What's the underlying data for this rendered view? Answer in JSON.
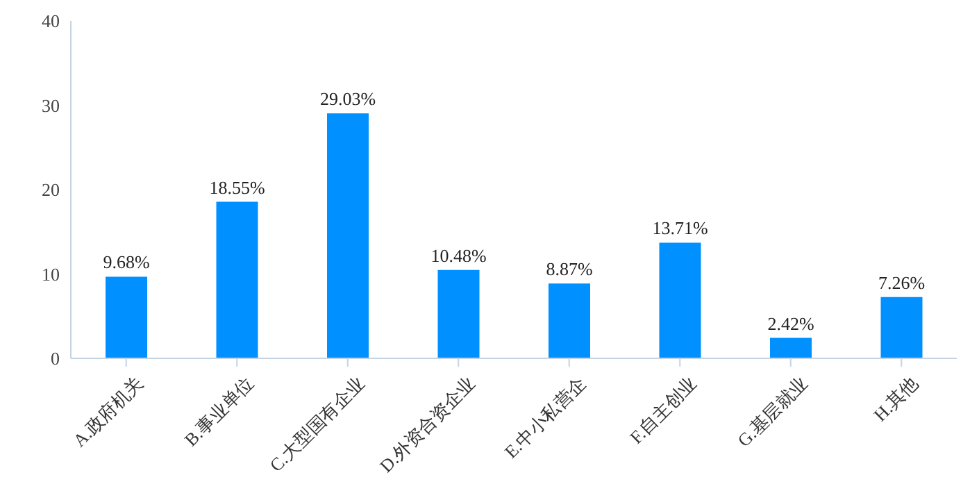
{
  "chart_data": {
    "type": "bar",
    "categories": [
      "A.政府机关",
      "B.事业单位",
      "C.大型国有企业",
      "D.外资合资企业",
      "E.中小私营企",
      "F.自主创业",
      "G.基层就业",
      "H.其他"
    ],
    "values": [
      9.68,
      18.55,
      29.03,
      10.48,
      8.87,
      13.71,
      2.42,
      7.26
    ],
    "value_labels": [
      "9.68%",
      "18.55%",
      "29.03%",
      "10.48%",
      "8.87%",
      "13.71%",
      "2.42%",
      "7.26%"
    ],
    "color": "#0090ff",
    "ylim": [
      0,
      40
    ],
    "yticks": [
      0,
      10,
      20,
      30,
      40
    ],
    "grid": false,
    "legend": false
  }
}
